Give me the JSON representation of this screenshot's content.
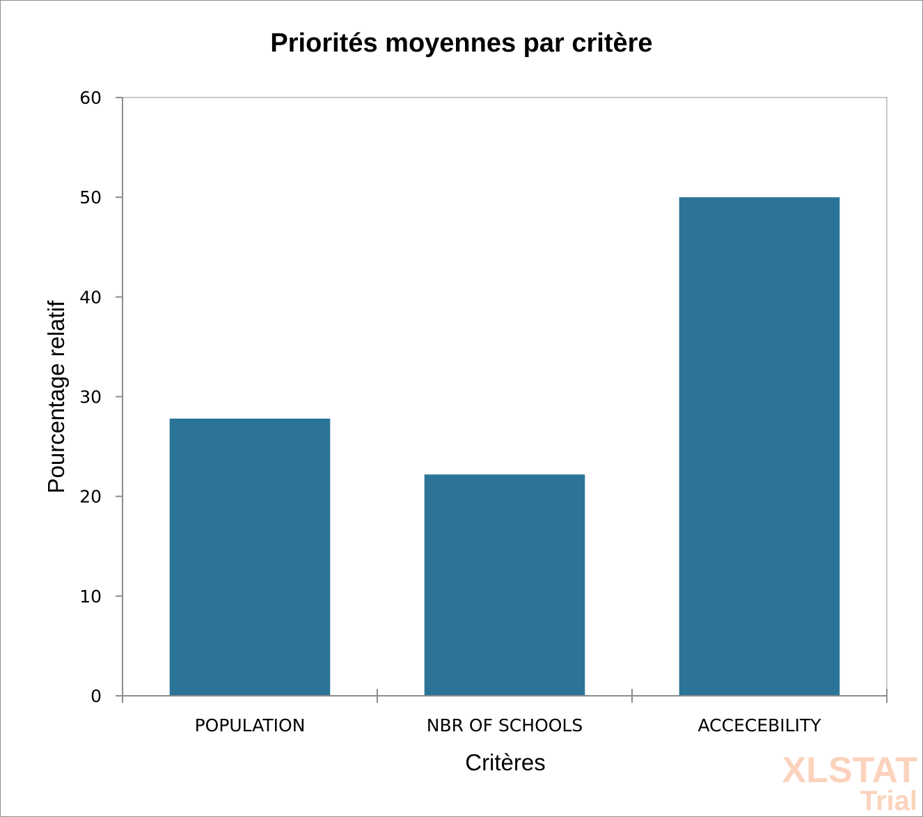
{
  "chart_data": {
    "type": "bar",
    "title": "Priorités moyennes par critère",
    "xlabel": "Critères",
    "ylabel": "Pourcentage relatif",
    "categories": [
      "POPULATION",
      "NBR OF SCHOOLS",
      "ACCECEBILITY"
    ],
    "values": [
      27.8,
      22.2,
      50.0
    ],
    "ylim": [
      0,
      60
    ],
    "yticks": [
      0,
      10,
      20,
      30,
      40,
      50,
      60
    ],
    "bar_color": "#2b7497",
    "grid": false,
    "legend": "none"
  },
  "watermark": {
    "brand": "XLSTAT",
    "edition": "Trial",
    "color": "#fbd3bd"
  }
}
